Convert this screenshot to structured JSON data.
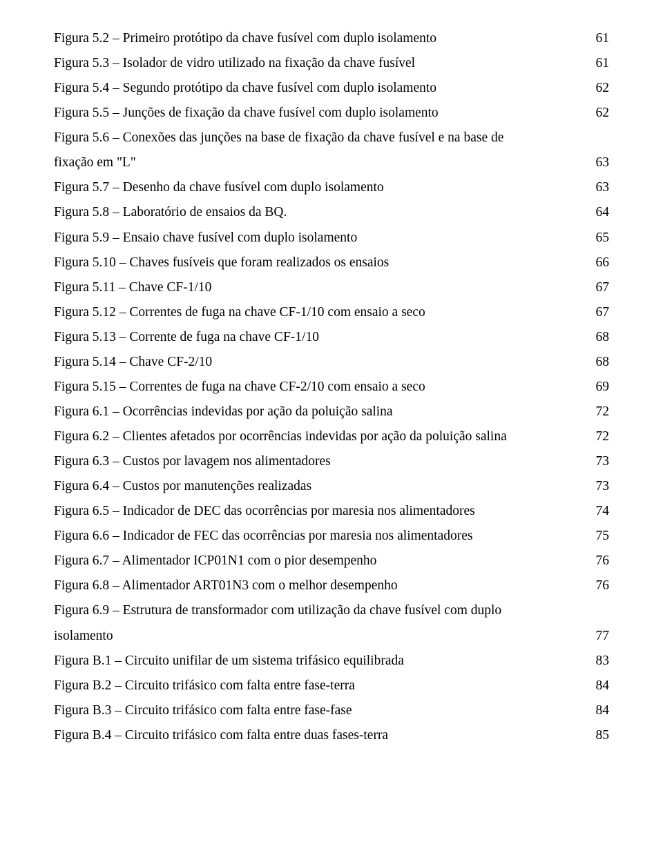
{
  "lof": [
    {
      "label": "Figura 5.2 – Primeiro protótipo da chave fusível com duplo isolamento",
      "page": "61"
    },
    {
      "label": "Figura 5.3 – Isolador de vidro utilizado na fixação da chave fusível",
      "page": "61"
    },
    {
      "label": "Figura 5.4 – Segundo protótipo da chave fusível com duplo isolamento",
      "page": "62"
    },
    {
      "label": "Figura 5.5 – Junções de fixação da chave fusível com duplo isolamento",
      "page": "62"
    },
    {
      "label": "Figura 5.6 – Conexões das junções na base de fixação da chave fusível e na base de",
      "cont": true
    },
    {
      "label": "fixação em \"L\"",
      "page": "63"
    },
    {
      "label": "Figura 5.7 – Desenho da chave fusível com duplo isolamento",
      "page": "63"
    },
    {
      "label": "Figura 5.8 – Laboratório de ensaios da BQ.",
      "page": "64"
    },
    {
      "label": "Figura 5.9 – Ensaio chave fusível com duplo isolamento",
      "page": "65"
    },
    {
      "label": "Figura 5.10 – Chaves fusíveis que foram realizados os ensaios",
      "page": "66"
    },
    {
      "label": "Figura 5.11 – Chave CF-1/10",
      "page": "67"
    },
    {
      "label": "Figura 5.12 – Correntes de fuga na chave CF-1/10 com ensaio a seco",
      "page": "67"
    },
    {
      "label": "Figura 5.13 – Corrente de fuga na chave CF-1/10",
      "page": "68"
    },
    {
      "label": "Figura 5.14 – Chave CF-2/10",
      "page": "68"
    },
    {
      "label": "Figura 5.15 – Correntes de fuga na chave CF-2/10 com ensaio a seco",
      "page": "69"
    },
    {
      "label": "Figura 6.1 – Ocorrências indevidas por ação da poluição salina",
      "page": "72"
    },
    {
      "label": "Figura 6.2 – Clientes afetados por ocorrências indevidas por ação da poluição salina",
      "page": "72"
    },
    {
      "label": "Figura 6.3 – Custos por lavagem nos alimentadores",
      "page": "73"
    },
    {
      "label": "Figura 6.4 – Custos por manutenções realizadas",
      "page": "73"
    },
    {
      "label": "Figura 6.5 – Indicador de DEC das ocorrências por maresia nos alimentadores",
      "page": "74"
    },
    {
      "label": "Figura 6.6 – Indicador de FEC das ocorrências por maresia nos alimentadores",
      "page": "75"
    },
    {
      "label": "Figura 6.7 – Alimentador ICP01N1 com o pior desempenho",
      "page": "76"
    },
    {
      "label": "Figura 6.8 – Alimentador ART01N3 com o melhor desempenho",
      "page": "76"
    },
    {
      "label": "Figura 6.9 – Estrutura de transformador com utilização da chave fusível com duplo",
      "cont": true
    },
    {
      "label": "isolamento",
      "page": "77"
    },
    {
      "label": "Figura B.1 – Circuito unifilar de um sistema trifásico equilibrada",
      "page": "83"
    },
    {
      "label": "Figura B.2 – Circuito trifásico com falta entre fase-terra",
      "page": "84"
    },
    {
      "label": "Figura B.3 – Circuito trifásico com falta entre fase-fase",
      "page": "84"
    },
    {
      "label": "Figura B.4 – Circuito trifásico com falta entre duas fases-terra",
      "page": "85"
    }
  ]
}
